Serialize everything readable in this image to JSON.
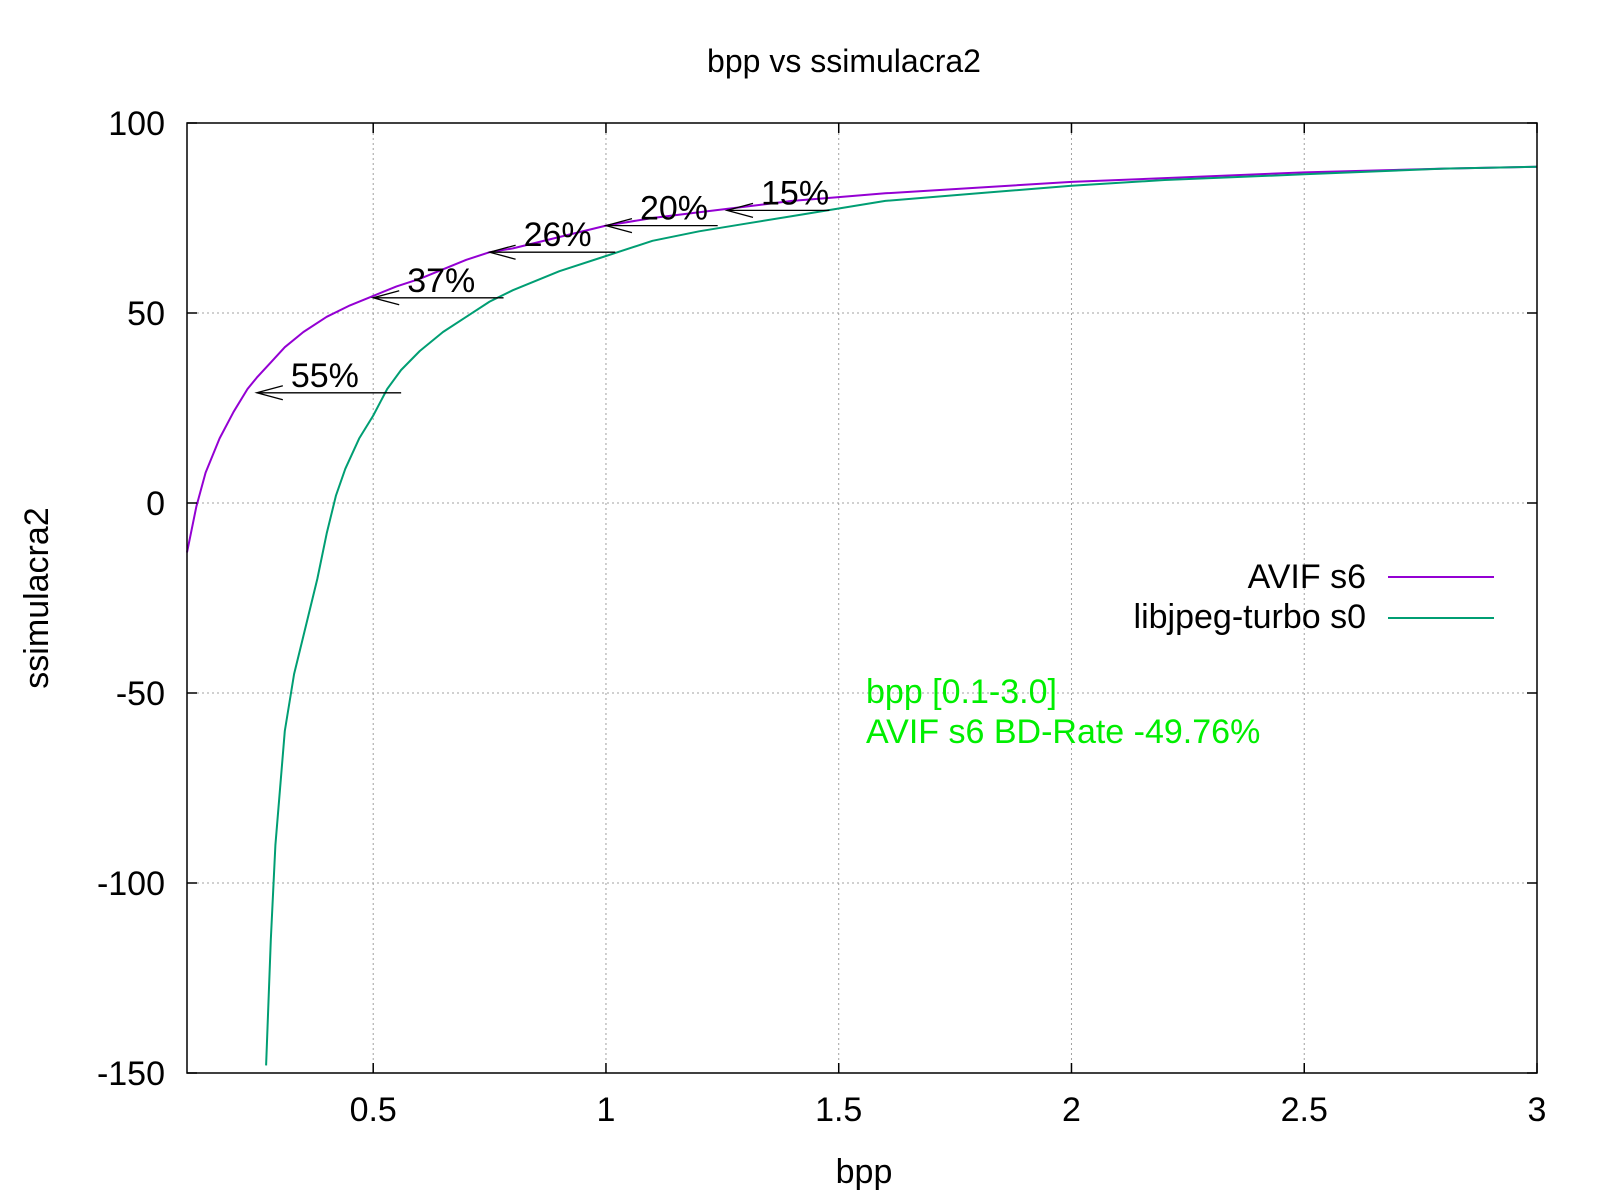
{
  "chart_data": {
    "type": "line",
    "title": "bpp vs ssimulacra2",
    "xlabel": "bpp",
    "ylabel": "ssimulacra2",
    "xlim": [
      0.1,
      3.0
    ],
    "ylim": [
      -150,
      100
    ],
    "xticks": [
      0.5,
      1,
      1.5,
      2,
      2.5,
      3
    ],
    "xtick_labels": [
      "0.5",
      "1",
      "1.5",
      "2",
      "2.5",
      "3"
    ],
    "yticks": [
      -150,
      -100,
      -50,
      0,
      50,
      100
    ],
    "ytick_labels": [
      "-150",
      "-100",
      "-50",
      "0",
      "50",
      "100"
    ],
    "grid": true,
    "legend_position": "right",
    "series": [
      {
        "name": "AVIF s6",
        "color": "#9400d3",
        "x": [
          0.1,
          0.12,
          0.14,
          0.17,
          0.2,
          0.23,
          0.25,
          0.28,
          0.31,
          0.35,
          0.4,
          0.45,
          0.5,
          0.55,
          0.6,
          0.7,
          0.75,
          0.8,
          0.9,
          1.0,
          1.1,
          1.2,
          1.3,
          1.4,
          1.5,
          1.6,
          1.8,
          2.0,
          2.2,
          2.5,
          2.8,
          3.0
        ],
        "y": [
          -13,
          -1,
          8,
          17,
          24,
          30,
          33,
          37,
          41,
          45,
          49,
          52,
          54.5,
          57,
          59,
          64,
          66,
          67,
          70,
          73,
          75,
          76.5,
          78,
          79.5,
          80.5,
          81.5,
          83,
          84.5,
          85.5,
          87,
          88,
          88.5
        ]
      },
      {
        "name": "libjpeg-turbo s0",
        "color": "#009e73",
        "x": [
          0.27,
          0.28,
          0.29,
          0.3,
          0.31,
          0.33,
          0.35,
          0.38,
          0.4,
          0.42,
          0.44,
          0.47,
          0.5,
          0.53,
          0.56,
          0.6,
          0.65,
          0.7,
          0.75,
          0.8,
          0.9,
          1.0,
          1.1,
          1.2,
          1.3,
          1.4,
          1.5,
          1.6,
          1.8,
          2.0,
          2.2,
          2.5,
          2.8,
          3.0
        ],
        "y": [
          -148,
          -115,
          -90,
          -75,
          -60,
          -45,
          -35,
          -20,
          -8,
          2,
          9,
          17,
          23,
          30,
          35,
          40,
          45,
          49,
          53,
          56,
          61,
          65,
          69,
          71.5,
          73.5,
          75.5,
          77.5,
          79.5,
          81.5,
          83.5,
          85,
          86.5,
          88,
          88.5
        ]
      }
    ],
    "annotations": [
      {
        "label": "55%",
        "y": 29,
        "x_from": 0.56,
        "x_to": 0.25
      },
      {
        "label": "37%",
        "y": 54,
        "x_from": 0.78,
        "x_to": 0.5
      },
      {
        "label": "26%",
        "y": 66,
        "x_from": 1.02,
        "x_to": 0.75
      },
      {
        "label": "20%",
        "y": 73,
        "x_from": 1.24,
        "x_to": 1.0
      },
      {
        "label": "15%",
        "y": 77,
        "x_from": 1.48,
        "x_to": 1.26
      }
    ],
    "notes": [
      "bpp [0.1-3.0]",
      "AVIF s6 BD-Rate -49.76%"
    ],
    "note_color": "#00ee00"
  }
}
